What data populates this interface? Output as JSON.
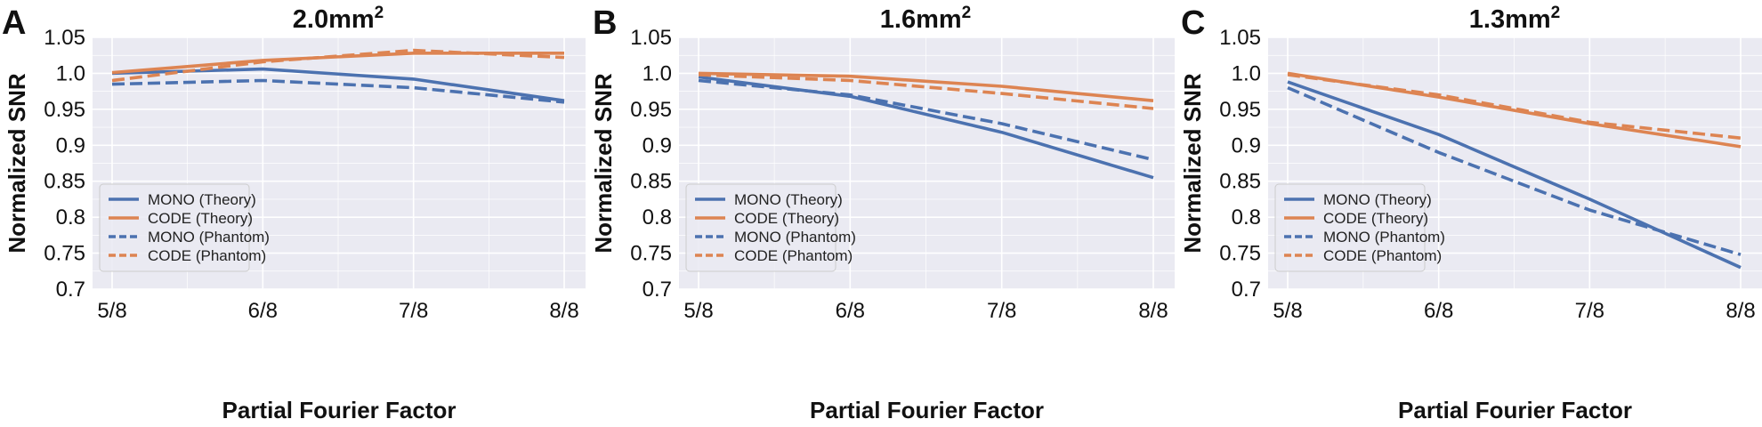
{
  "chart_data": [
    {
      "type": "line",
      "panel_label": "A",
      "title": "2.0mm",
      "title_sup": "2",
      "xlabel": "Partial Fourier Factor",
      "ylabel": "Normalized SNR",
      "categories": [
        "5/8",
        "6/8",
        "7/8",
        "8/8"
      ],
      "yticks": [
        "1.05",
        "1.0",
        "0.95",
        "0.9",
        "0.85",
        "0.8",
        "0.75",
        "0.7"
      ],
      "ylim": [
        0.7,
        1.05
      ],
      "grid": true,
      "legend_position": "bottom-left",
      "series": [
        {
          "name": "MONO (Theory)",
          "color": "#4c72b0",
          "style": "solid",
          "values": [
            1.0,
            1.006,
            0.992,
            0.962
          ]
        },
        {
          "name": "CODE (Theory)",
          "color": "#dd8452",
          "style": "solid",
          "values": [
            1.001,
            1.018,
            1.028,
            1.028
          ]
        },
        {
          "name": "MONO (Phantom)",
          "color": "#4c72b0",
          "style": "dashed",
          "values": [
            0.985,
            0.99,
            0.98,
            0.96
          ]
        },
        {
          "name": "CODE (Phantom)",
          "color": "#dd8452",
          "style": "dashed",
          "values": [
            0.99,
            1.016,
            1.032,
            1.022
          ]
        }
      ]
    },
    {
      "type": "line",
      "panel_label": "B",
      "title": "1.6mm",
      "title_sup": "2",
      "xlabel": "Partial Fourier Factor",
      "ylabel": "Normalized SNR",
      "categories": [
        "5/8",
        "6/8",
        "7/8",
        "8/8"
      ],
      "yticks": [
        "1.05",
        "1.0",
        "0.95",
        "0.9",
        "0.85",
        "0.8",
        "0.75",
        "0.7"
      ],
      "ylim": [
        0.7,
        1.05
      ],
      "grid": true,
      "legend_position": "bottom-left",
      "series": [
        {
          "name": "MONO (Theory)",
          "color": "#4c72b0",
          "style": "solid",
          "values": [
            0.995,
            0.968,
            0.918,
            0.855
          ]
        },
        {
          "name": "CODE (Theory)",
          "color": "#dd8452",
          "style": "solid",
          "values": [
            1.0,
            0.996,
            0.982,
            0.962
          ]
        },
        {
          "name": "MONO (Phantom)",
          "color": "#4c72b0",
          "style": "dashed",
          "values": [
            0.99,
            0.97,
            0.93,
            0.88
          ]
        },
        {
          "name": "CODE (Phantom)",
          "color": "#dd8452",
          "style": "dashed",
          "values": [
            0.998,
            0.99,
            0.972,
            0.951
          ]
        }
      ]
    },
    {
      "type": "line",
      "panel_label": "C",
      "title": "1.3mm",
      "title_sup": "2",
      "xlabel": "Partial Fourier Factor",
      "ylabel": "Normalized SNR",
      "categories": [
        "5/8",
        "6/8",
        "7/8",
        "8/8"
      ],
      "yticks": [
        "1.05",
        "1.0",
        "0.95",
        "0.9",
        "0.85",
        "0.8",
        "0.75",
        "0.7"
      ],
      "ylim": [
        0.7,
        1.05
      ],
      "grid": true,
      "legend_position": "bottom-left",
      "series": [
        {
          "name": "MONO (Theory)",
          "color": "#4c72b0",
          "style": "solid",
          "values": [
            0.988,
            0.915,
            0.825,
            0.73
          ]
        },
        {
          "name": "CODE (Theory)",
          "color": "#dd8452",
          "style": "solid",
          "values": [
            1.0,
            0.967,
            0.93,
            0.898
          ]
        },
        {
          "name": "MONO (Phantom)",
          "color": "#4c72b0",
          "style": "dashed",
          "values": [
            0.98,
            0.89,
            0.81,
            0.748
          ]
        },
        {
          "name": "CODE (Phantom)",
          "color": "#dd8452",
          "style": "dashed",
          "values": [
            0.998,
            0.97,
            0.932,
            0.91
          ]
        }
      ]
    }
  ]
}
